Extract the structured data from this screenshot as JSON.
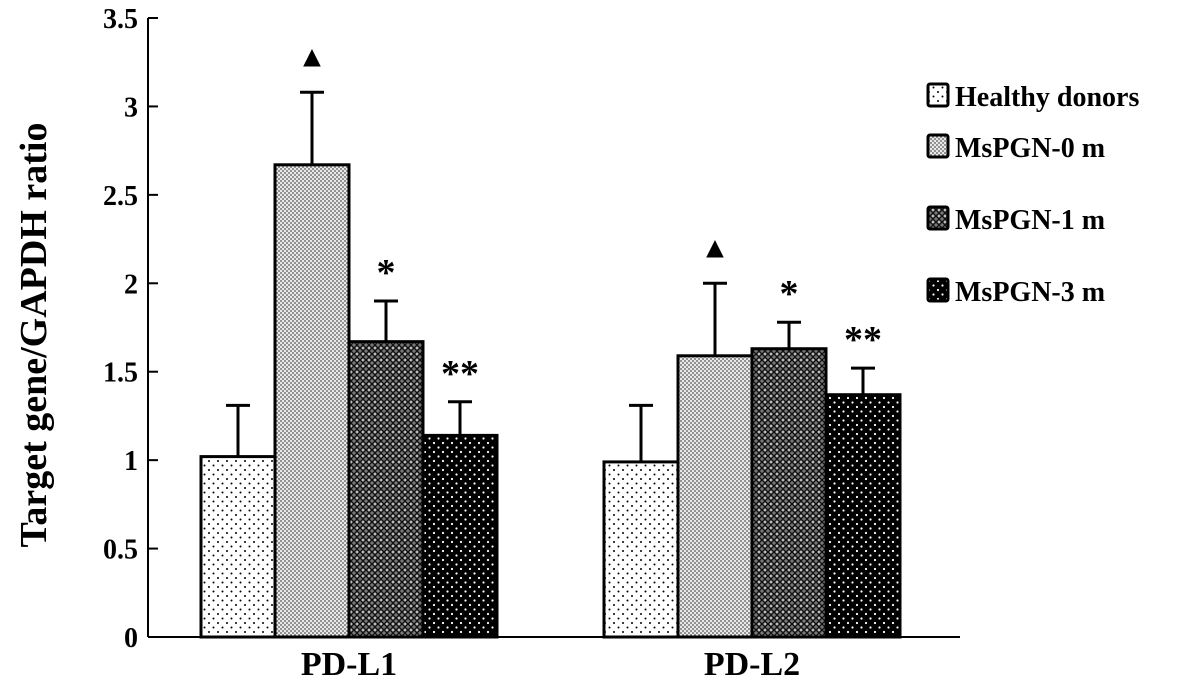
{
  "chart_data": {
    "type": "bar",
    "title": "",
    "xlabel": "",
    "ylabel": "Target gene/GAPDH ratio",
    "ylim": [
      0,
      3.5
    ],
    "yticks": [
      "0",
      "0.5",
      "1",
      "1.5",
      "2",
      "2.5",
      "3",
      "3.5"
    ],
    "ytick_values": [
      0,
      0.5,
      1,
      1.5,
      2,
      2.5,
      3,
      3.5
    ],
    "categories": [
      "PD-L1",
      "PD-L2"
    ],
    "legend_position": "right",
    "series": [
      {
        "name": "Healthy donors",
        "values": [
          1.02,
          0.99
        ],
        "error_upper": [
          1.31,
          1.31
        ],
        "pattern": "sparse-dots",
        "annotations": [
          "",
          ""
        ]
      },
      {
        "name": "MsPGN-0 m",
        "values": [
          2.67,
          1.59
        ],
        "error_upper": [
          3.08,
          2.0
        ],
        "pattern": "fine-dots",
        "annotations": [
          "▲",
          "▲"
        ]
      },
      {
        "name": "MsPGN-1 m",
        "values": [
          1.67,
          1.63
        ],
        "error_upper": [
          1.9,
          1.78
        ],
        "pattern": "crosshatch",
        "annotations": [
          "*",
          "*"
        ]
      },
      {
        "name": "MsPGN-3 m",
        "values": [
          1.14,
          1.37
        ],
        "error_upper": [
          1.33,
          1.52
        ],
        "pattern": "dark-dots",
        "annotations": [
          "**",
          "**"
        ]
      }
    ]
  }
}
